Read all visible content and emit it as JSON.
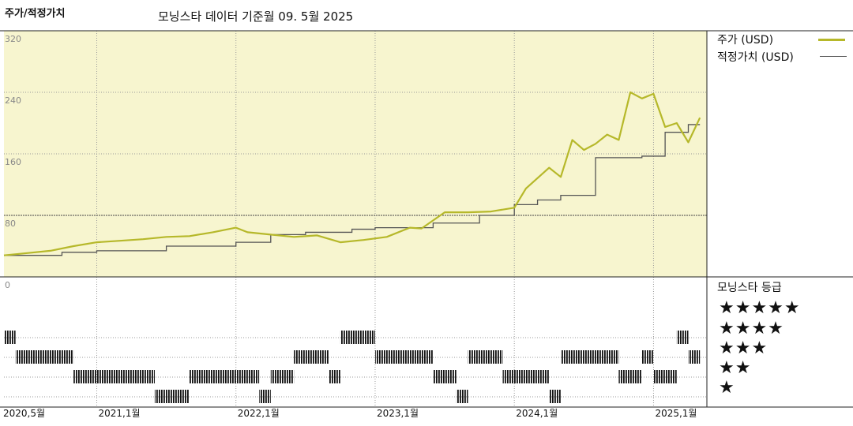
{
  "header": {
    "title": "주가/적정가치",
    "subtitle": "모닝스타 데이터 기준월 09. 5월 2025"
  },
  "legend": {
    "price_label": "주가 (USD)",
    "fair_label": "적정가치 (USD)",
    "rating_title": "모닝스타 등급"
  },
  "colors": {
    "price": "#b6b82a",
    "fair": "#555555",
    "plot_bg": "#f7f5cf"
  },
  "chart_data": {
    "type": "line",
    "ylim": [
      0,
      320
    ],
    "yticks": [
      "320",
      "240",
      "160",
      "80",
      "0"
    ],
    "xticks": [
      "2020,5월",
      "2021,1월",
      "2022,1월",
      "2023,1월",
      "2024,1월",
      "2025,1월"
    ],
    "series": [
      {
        "name": "주가 (USD)",
        "x": [
          "2020-05",
          "2020-07",
          "2020-09",
          "2020-11",
          "2021-01",
          "2021-03",
          "2021-05",
          "2021-07",
          "2021-09",
          "2021-11",
          "2022-01",
          "2022-02",
          "2022-04",
          "2022-06",
          "2022-08",
          "2022-10",
          "2022-12",
          "2023-02",
          "2023-04",
          "2023-05",
          "2023-07",
          "2023-09",
          "2023-11",
          "2024-01",
          "2024-02",
          "2024-04",
          "2024-05",
          "2024-06",
          "2024-07",
          "2024-08",
          "2024-09",
          "2024-10",
          "2024-11",
          "2024-12",
          "2025-01",
          "2025-02",
          "2025-03",
          "2025-04",
          "2025-05"
        ],
        "values": [
          28,
          31,
          34,
          40,
          45,
          47,
          49,
          52,
          53,
          58,
          64,
          58,
          55,
          52,
          54,
          45,
          48,
          52,
          64,
          63,
          84,
          84,
          85,
          90,
          115,
          142,
          130,
          178,
          165,
          173,
          185,
          178,
          240,
          232,
          238,
          195,
          200,
          175,
          207
        ]
      },
      {
        "name": "적정가치 (USD)",
        "x": [
          "2020-05",
          "2020-10",
          "2021-01",
          "2021-07",
          "2022-01",
          "2022-04",
          "2022-07",
          "2022-11",
          "2023-01",
          "2023-06",
          "2023-10",
          "2024-01",
          "2024-03",
          "2024-05",
          "2024-08",
          "2024-12",
          "2025-02",
          "2025-04",
          "2025-05"
        ],
        "values": [
          28,
          32,
          34,
          40,
          45,
          55,
          58,
          62,
          64,
          70,
          80,
          94,
          100,
          106,
          155,
          157,
          188,
          198,
          198
        ]
      }
    ],
    "ratings": {
      "levels": [
        "★★★★★",
        "★★★★",
        "★★★",
        "★★",
        "★"
      ],
      "periods": [
        {
          "stars": 4,
          "start": "2020-05",
          "end": "2020-06"
        },
        {
          "stars": 3,
          "start": "2020-06",
          "end": "2020-11"
        },
        {
          "stars": 2,
          "start": "2020-11",
          "end": "2021-06"
        },
        {
          "stars": 1,
          "start": "2021-06",
          "end": "2021-09"
        },
        {
          "stars": 2,
          "start": "2021-09",
          "end": "2022-03"
        },
        {
          "stars": 1,
          "start": "2022-03",
          "end": "2022-04"
        },
        {
          "stars": 2,
          "start": "2022-04",
          "end": "2022-06"
        },
        {
          "stars": 3,
          "start": "2022-06",
          "end": "2022-09"
        },
        {
          "stars": 2,
          "start": "2022-09",
          "end": "2022-10"
        },
        {
          "stars": 4,
          "start": "2022-10",
          "end": "2023-01"
        },
        {
          "stars": 3,
          "start": "2023-01",
          "end": "2023-06"
        },
        {
          "stars": 2,
          "start": "2023-06",
          "end": "2023-08"
        },
        {
          "stars": 1,
          "start": "2023-08",
          "end": "2023-09"
        },
        {
          "stars": 3,
          "start": "2023-09",
          "end": "2023-12"
        },
        {
          "stars": 2,
          "start": "2023-12",
          "end": "2024-04"
        },
        {
          "stars": 1,
          "start": "2024-04",
          "end": "2024-05"
        },
        {
          "stars": 3,
          "start": "2024-05",
          "end": "2024-10"
        },
        {
          "stars": 2,
          "start": "2024-10",
          "end": "2024-12"
        },
        {
          "stars": 3,
          "start": "2024-12",
          "end": "2025-01"
        },
        {
          "stars": 2,
          "start": "2025-01",
          "end": "2025-03"
        },
        {
          "stars": 4,
          "start": "2025-03",
          "end": "2025-04"
        },
        {
          "stars": 3,
          "start": "2025-04",
          "end": "2025-05"
        }
      ]
    },
    "grid": true
  }
}
